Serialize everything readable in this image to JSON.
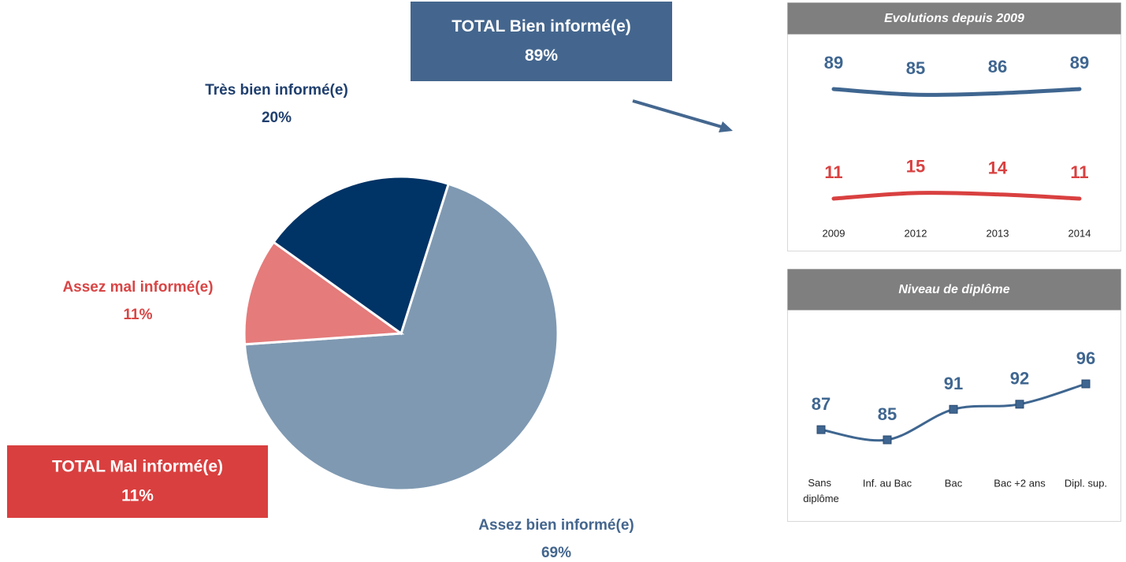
{
  "chart_data": [
    {
      "type": "pie",
      "categories": [
        "Assez bien informé(e)",
        "Assez mal informé(e)",
        "Très bien informé(e)"
      ],
      "values": [
        69,
        11,
        20
      ],
      "value_labels": [
        "69%",
        "11%",
        "20%"
      ],
      "colors": [
        "#7f99b2",
        "#e57b7b",
        "#003366"
      ],
      "label_colors": [
        "#44668e",
        "#d94545",
        "#1f3f6e"
      ],
      "annotations": [
        {
          "title": "TOTAL Bien informé(e)",
          "label": "89%",
          "color": "#44668e"
        },
        {
          "title": "TOTAL Mal informé(e)",
          "label": "11%",
          "color": "#d93f3f"
        }
      ]
    },
    {
      "type": "line",
      "title": "Evolutions depuis 2009",
      "categories": [
        "2009",
        "2012",
        "2013",
        "2014"
      ],
      "series": [
        {
          "color": "#3f6690",
          "values": [
            89,
            85,
            86,
            89
          ]
        },
        {
          "color": "#d94040",
          "values": [
            11,
            15,
            14,
            11
          ]
        }
      ]
    },
    {
      "type": "line",
      "title": "Niveau de diplôme",
      "categories": [
        "Sans diplôme",
        "Inf. au Bac",
        "Bac",
        "Bac +2 ans",
        "Dipl. sup."
      ],
      "series": [
        {
          "color": "#3f6690",
          "values": [
            87,
            85,
            91,
            92,
            96
          ],
          "markers": true
        }
      ]
    }
  ]
}
